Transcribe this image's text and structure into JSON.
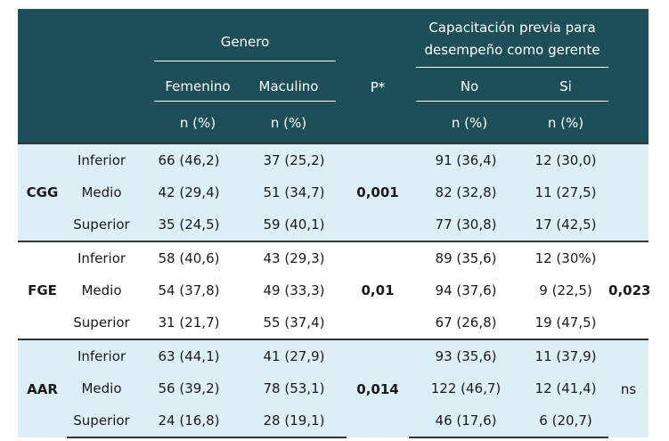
{
  "header": {
    "genero": "Genero",
    "capacitacion_line1": "Capacitación previa para",
    "capacitacion_line2": "desempeño como gerente",
    "femenino": "Femenino",
    "maculino": "Maculino",
    "p": "P*",
    "no": "No",
    "si": "Si",
    "n_pct": "n (%)"
  },
  "groups": [
    {
      "label": "CGG",
      "p_genero": "0,001",
      "p_cap": "",
      "rows": [
        {
          "level": "Inferior",
          "fem": "66 (46,2)",
          "mac": "37 (25,2)",
          "no": "91 (36,4)",
          "si": "12 (30,0)"
        },
        {
          "level": "Medio",
          "fem": "42 (29,4)",
          "mac": "51 (34,7)",
          "no": "82 (32,8)",
          "si": "11 (27,5)"
        },
        {
          "level": "Superior",
          "fem": "35 (24,5)",
          "mac": "59 (40,1)",
          "no": "77 (30,8)",
          "si": "17 (42,5)"
        }
      ]
    },
    {
      "label": "FGE",
      "p_genero": "0,01",
      "p_cap": "0,023",
      "rows": [
        {
          "level": "Inferior",
          "fem": "58 (40,6)",
          "mac": "43 (29,3)",
          "no": "89 (35,6)",
          "si": "12 (30%)"
        },
        {
          "level": "Medio",
          "fem": "54 (37,8)",
          "mac": "49 (33,3)",
          "no": "94 (37,6)",
          "si": "9 (22,5)"
        },
        {
          "level": "Superior",
          "fem": "31 (21,7)",
          "mac": "55 (37,4)",
          "no": "67 (26,8)",
          "si": "19 (47,5)"
        }
      ]
    },
    {
      "label": "AAR",
      "p_genero": "0,014",
      "p_cap": "ns",
      "rows": [
        {
          "level": "Inferior",
          "fem": "63 (44,1)",
          "mac": "41 (27,9)",
          "no": "93 (35,6)",
          "si": "11 (37,9)"
        },
        {
          "level": "Medio",
          "fem": "56 (39,2)",
          "mac": "78 (53,1)",
          "no": "122 (46,7)",
          "si": "12 (41,4)"
        },
        {
          "level": "Superior",
          "fem": "24 (16,8)",
          "mac": "28 (19,1)",
          "no": "46 (17,6)",
          "si": "6 (20,7)"
        }
      ]
    }
  ]
}
